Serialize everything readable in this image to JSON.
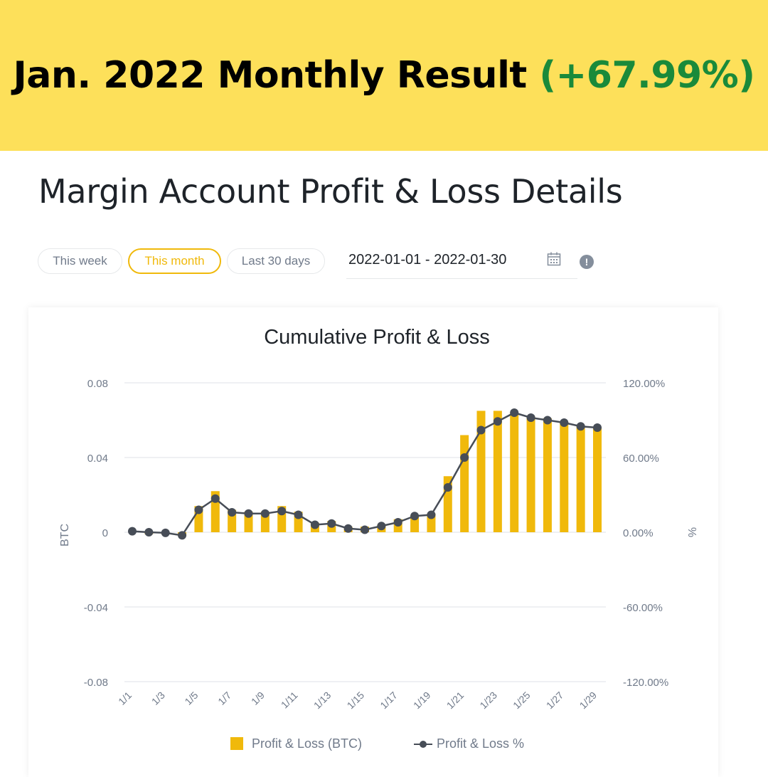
{
  "banner": {
    "title": "Jan. 2022 Monthly Result",
    "highlight": "(+67.99%)",
    "highlight_color": "#1a8a3a",
    "background_color": "#fde05a"
  },
  "page": {
    "title": "Margin Account Profit & Loss Details"
  },
  "filters": {
    "tabs": [
      {
        "label": "This week",
        "active": false
      },
      {
        "label": "This month",
        "active": true
      },
      {
        "label": "Last 30 days",
        "active": false
      }
    ],
    "date_range": "2022-01-01 - 2022-01-30",
    "calendar_icon": "calendar-icon",
    "info_icon": "info-icon"
  },
  "chart_data": {
    "type": "bar",
    "title": "Cumulative Profit & Loss",
    "ylabel": "BTC",
    "y2label": "%",
    "ylim": [
      -0.08,
      0.08
    ],
    "y2lim": [
      -120,
      120
    ],
    "yticks": [
      "0.08",
      "0.04",
      "0",
      "-0.04",
      "-0.08"
    ],
    "y2ticks": [
      "120.00%",
      "60.00%",
      "0.00%",
      "-60.00%",
      "-120.00%"
    ],
    "categories": [
      "1/1",
      "1/2",
      "1/3",
      "1/4",
      "1/5",
      "1/6",
      "1/7",
      "1/8",
      "1/9",
      "1/10",
      "1/11",
      "1/12",
      "1/13",
      "1/14",
      "1/15",
      "1/16",
      "1/17",
      "1/18",
      "1/19",
      "1/20",
      "1/21",
      "1/22",
      "1/23",
      "1/24",
      "1/25",
      "1/26",
      "1/27",
      "1/28",
      "1/29"
    ],
    "xtick_labels": [
      "1/1",
      "1/3",
      "1/5",
      "1/7",
      "1/9",
      "1/11",
      "1/13",
      "1/15",
      "1/17",
      "1/19",
      "1/21",
      "1/23",
      "1/25",
      "1/27",
      "1/29"
    ],
    "series": [
      {
        "name": "Profit & Loss (BTC)",
        "type": "bar",
        "axis": "left",
        "color": "#f0b90b",
        "values": [
          0,
          -0.001,
          -0.001,
          -0.002,
          0.014,
          0.022,
          0.012,
          0.011,
          0.011,
          0.014,
          0.011,
          0.005,
          0.006,
          0.003,
          0.003,
          0.004,
          0.007,
          0.009,
          0.01,
          0.03,
          0.052,
          0.065,
          0.065,
          0.064,
          0.062,
          0.061,
          0.059,
          0.057,
          0.056
        ]
      },
      {
        "name": "Profit & Loss %",
        "type": "line",
        "axis": "right",
        "color": "#474d57",
        "values": [
          0.8,
          0,
          -0.5,
          -2.5,
          18,
          27,
          16,
          15,
          15,
          17,
          14,
          6,
          7,
          3,
          2,
          5,
          8,
          13,
          14,
          36,
          60,
          82,
          89,
          96,
          92,
          90,
          88,
          85,
          84
        ]
      }
    ],
    "grid": true,
    "legend_position": "bottom-center"
  }
}
